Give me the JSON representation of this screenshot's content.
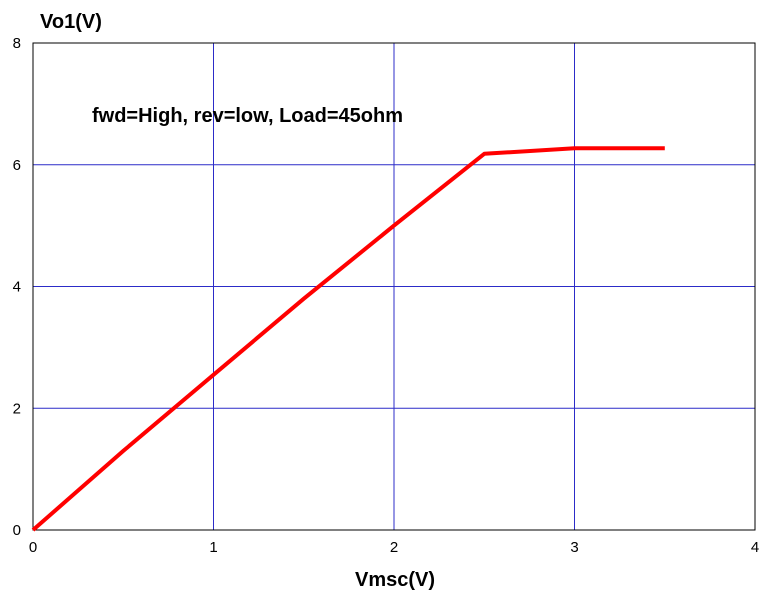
{
  "chart_data": {
    "type": "line",
    "title": "",
    "xlabel": "Vmsc(V)",
    "ylabel": "Vo1(V)",
    "xlim": [
      0,
      4
    ],
    "ylim": [
      0,
      8
    ],
    "x_ticks": [
      "0",
      "1",
      "2",
      "3",
      "4"
    ],
    "y_ticks": [
      "0",
      "2",
      "4",
      "6",
      "8"
    ],
    "grid": true,
    "annotation": "fwd=High, rev=low, Load=45ohm",
    "series": [
      {
        "color": "#ff0000",
        "x": [
          0,
          0.5,
          1.0,
          1.5,
          2.0,
          2.5,
          3.0,
          3.5
        ],
        "y": [
          0,
          1.3,
          2.55,
          3.8,
          5.0,
          6.18,
          6.27,
          6.27
        ]
      }
    ],
    "colors": {
      "grid": "#2c2cc8",
      "frame": "#000000",
      "line": "#ff0000"
    }
  }
}
